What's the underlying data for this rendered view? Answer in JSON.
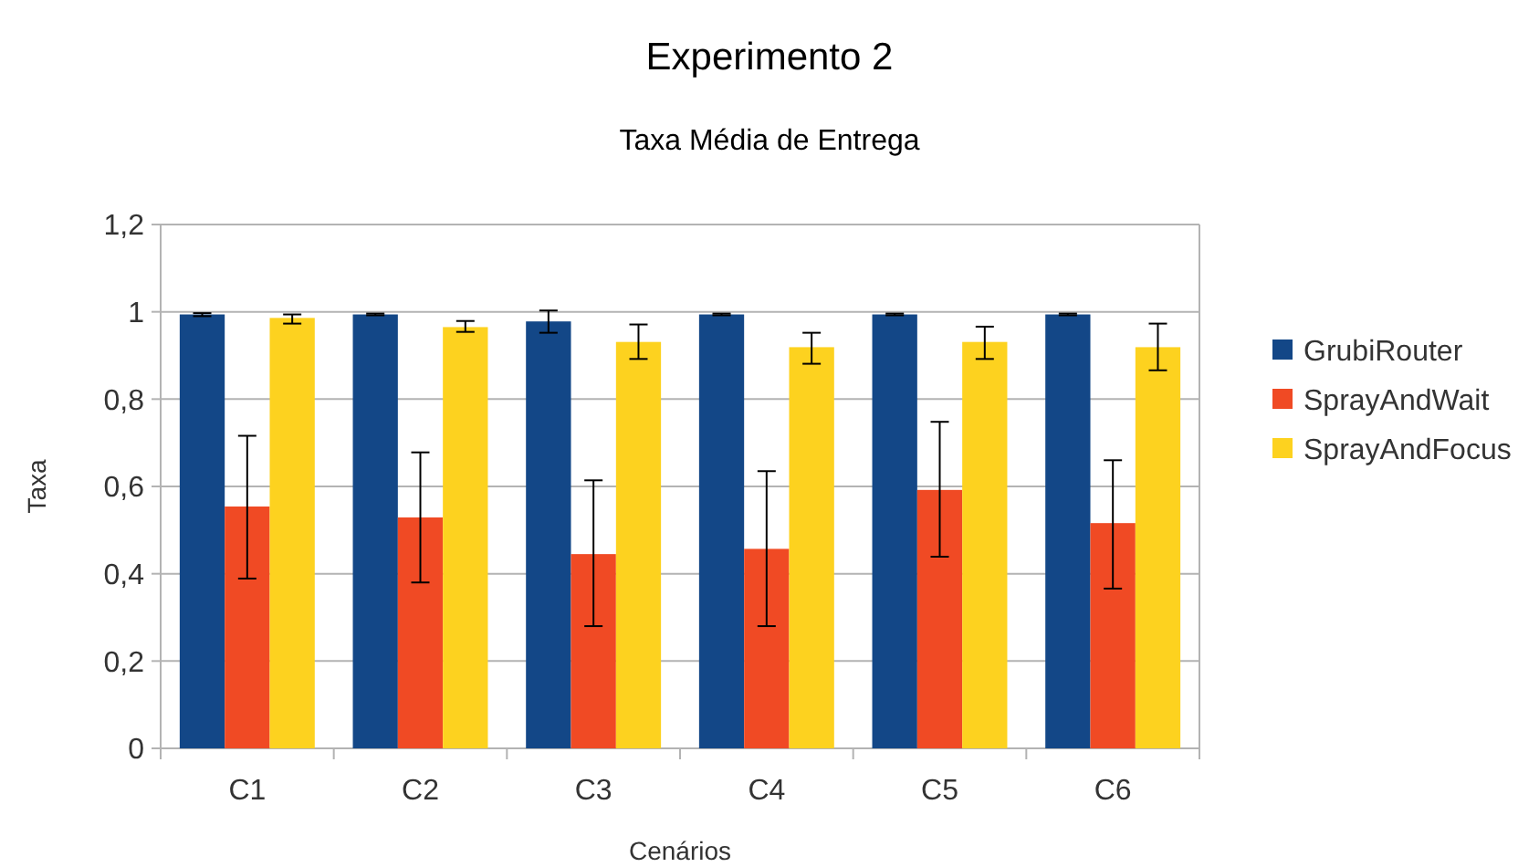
{
  "chart_data": {
    "type": "bar",
    "title": "Experimento 2",
    "subtitle": "Taxa Média de Entrega",
    "xlabel": "Cenários",
    "ylabel": "Taxa",
    "categories": [
      "C1",
      "C2",
      "C3",
      "C4",
      "C5",
      "C6"
    ],
    "series": [
      {
        "name": "GrubiRouter",
        "color": "#134787",
        "values": [
          0.994,
          0.994,
          0.978,
          0.994,
          0.994,
          0.994
        ],
        "errors": [
          [
            0.99,
            0.997
          ],
          [
            0.992,
            0.996
          ],
          [
            0.952,
            1.003
          ],
          [
            0.992,
            0.996
          ],
          [
            0.992,
            0.996
          ],
          [
            0.992,
            0.996
          ]
        ]
      },
      {
        "name": "SprayAndWait",
        "color": "#f04a24",
        "values": [
          0.554,
          0.529,
          0.445,
          0.457,
          0.592,
          0.516
        ],
        "errors": [
          [
            0.389,
            0.716
          ],
          [
            0.38,
            0.678
          ],
          [
            0.28,
            0.614
          ],
          [
            0.28,
            0.635
          ],
          [
            0.439,
            0.748
          ],
          [
            0.366,
            0.66
          ]
        ]
      },
      {
        "name": "SprayAndFocus",
        "color": "#fdd21f",
        "values": [
          0.986,
          0.965,
          0.931,
          0.919,
          0.931,
          0.919
        ],
        "errors": [
          [
            0.973,
            0.994
          ],
          [
            0.954,
            0.979
          ],
          [
            0.892,
            0.971
          ],
          [
            0.881,
            0.952
          ],
          [
            0.892,
            0.966
          ],
          [
            0.866,
            0.973
          ]
        ]
      }
    ],
    "ylim": [
      0,
      1.2
    ],
    "yticks": [
      {
        "value": 0,
        "label": "0"
      },
      {
        "value": 0.2,
        "label": "0,2"
      },
      {
        "value": 0.4,
        "label": "0,4"
      },
      {
        "value": 0.6,
        "label": "0,6"
      },
      {
        "value": 0.8,
        "label": "0,8"
      },
      {
        "value": 1,
        "label": "1"
      },
      {
        "value": 1.2,
        "label": "1,2"
      }
    ],
    "grid": "y",
    "legend": "right"
  }
}
